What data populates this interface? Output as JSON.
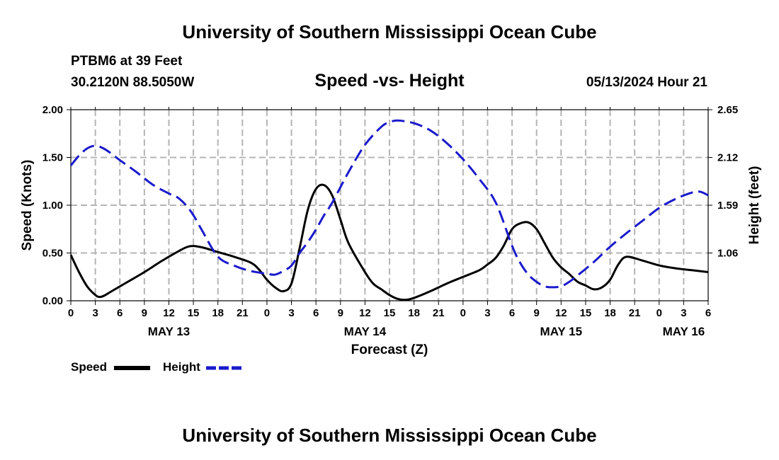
{
  "header": {
    "title": "University of Southern Mississippi Ocean Cube",
    "station": "PTBM6 at 39 Feet",
    "coords": "30.2120N  88.5050W",
    "subtitle": "Speed -vs- Height",
    "datetime": "05/13/2024 Hour 21"
  },
  "footer": {
    "title": "University of Southern Mississippi Ocean Cube"
  },
  "legend": {
    "speed_label": "Speed",
    "height_label": "Height"
  },
  "colors": {
    "speed": "#000000",
    "height": "#1a1acc",
    "grid": "#b4b4b4"
  },
  "chart_data": {
    "type": "line",
    "title": "Speed -vs- Height",
    "xlabel": "Forecast (Z)",
    "ylabel": "Speed (Knots)",
    "y2label": "Height (feet)",
    "x_unit": "hours since May 13 00Z",
    "xlim": [
      0,
      78
    ],
    "ylim": [
      0,
      2.0
    ],
    "y2lim": [
      0.53,
      2.65
    ],
    "x_ticks": [
      0,
      3,
      6,
      9,
      12,
      15,
      18,
      21,
      24,
      27,
      30,
      33,
      36,
      39,
      42,
      45,
      48,
      51,
      54,
      57,
      60,
      63,
      66,
      69,
      72,
      75,
      78
    ],
    "x_tick_labels": [
      "0",
      "3",
      "6",
      "9",
      "12",
      "15",
      "18",
      "21",
      "0",
      "3",
      "6",
      "9",
      "12",
      "15",
      "18",
      "21",
      "0",
      "3",
      "6",
      "9",
      "12",
      "15",
      "18",
      "21",
      "0",
      "3",
      "6"
    ],
    "date_labels": [
      {
        "x": 12,
        "label": "MAY 13"
      },
      {
        "x": 36,
        "label": "MAY 14"
      },
      {
        "x": 60,
        "label": "MAY 15"
      },
      {
        "x": 75,
        "label": "MAY 16"
      }
    ],
    "y_ticks": [
      "0.00",
      "0.50",
      "1.00",
      "1.50",
      "2.00"
    ],
    "y2_ticks": [
      "1.06",
      "1.59",
      "2.12",
      "2.65"
    ],
    "series": [
      {
        "name": "Speed",
        "axis": "left",
        "style": "solid",
        "x": [
          0,
          1,
          2,
          3,
          3.5,
          4,
          5,
          7,
          9,
          11,
          13,
          14.5,
          16,
          18,
          20,
          22,
          23,
          24,
          25,
          26,
          27,
          28,
          29,
          30,
          31,
          32,
          33,
          34,
          36,
          37,
          38,
          39,
          40,
          41,
          42,
          44,
          46,
          48,
          50,
          51,
          52,
          53,
          54,
          55,
          56,
          57,
          58,
          59,
          60,
          61,
          62,
          63,
          64,
          65,
          66,
          67,
          68,
          70,
          72,
          74,
          76,
          78
        ],
        "y": [
          0.48,
          0.3,
          0.15,
          0.06,
          0.04,
          0.05,
          0.1,
          0.2,
          0.3,
          0.41,
          0.51,
          0.57,
          0.56,
          0.51,
          0.46,
          0.4,
          0.33,
          0.22,
          0.14,
          0.1,
          0.18,
          0.55,
          0.95,
          1.17,
          1.21,
          1.1,
          0.85,
          0.6,
          0.3,
          0.18,
          0.12,
          0.06,
          0.02,
          0.01,
          0.03,
          0.1,
          0.18,
          0.25,
          0.32,
          0.38,
          0.45,
          0.58,
          0.75,
          0.81,
          0.82,
          0.75,
          0.6,
          0.45,
          0.35,
          0.28,
          0.2,
          0.16,
          0.12,
          0.14,
          0.22,
          0.38,
          0.46,
          0.42,
          0.37,
          0.34,
          0.32,
          0.3
        ]
      },
      {
        "name": "Height",
        "axis": "right",
        "style": "dashed",
        "x": [
          0,
          1,
          2,
          3,
          4,
          5,
          6,
          8,
          10,
          12,
          13,
          14,
          15,
          16,
          18,
          20,
          22,
          24,
          25,
          26,
          27,
          28,
          29,
          30,
          31,
          32,
          34,
          36,
          38,
          39,
          40,
          42,
          44,
          46,
          48,
          50,
          52,
          54,
          55,
          56,
          57,
          58,
          59,
          60,
          61,
          62,
          64,
          66,
          68,
          70,
          72,
          74,
          76,
          77,
          78
        ],
        "y": [
          2.03,
          2.14,
          2.22,
          2.25,
          2.22,
          2.16,
          2.09,
          1.96,
          1.82,
          1.72,
          1.68,
          1.6,
          1.48,
          1.32,
          1.02,
          0.92,
          0.86,
          0.83,
          0.82,
          0.86,
          0.92,
          1.06,
          1.18,
          1.32,
          1.48,
          1.62,
          1.96,
          2.26,
          2.46,
          2.51,
          2.53,
          2.5,
          2.42,
          2.28,
          2.1,
          1.88,
          1.62,
          1.14,
          0.95,
          0.82,
          0.74,
          0.69,
          0.68,
          0.69,
          0.74,
          0.81,
          0.96,
          1.13,
          1.28,
          1.42,
          1.56,
          1.66,
          1.73,
          1.74,
          1.7
        ]
      }
    ]
  }
}
